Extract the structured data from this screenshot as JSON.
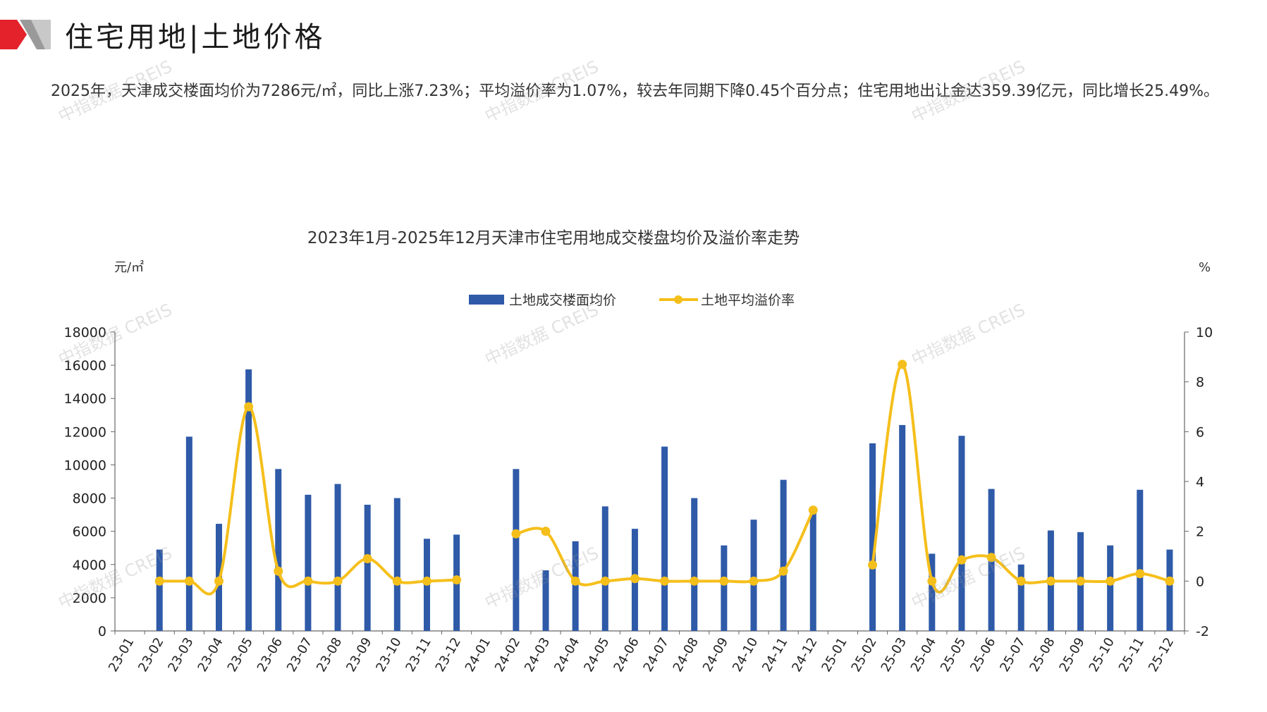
{
  "header": {
    "title": "住宅用地|土地价格",
    "summary": "2025年，天津成交楼面均价为7286元/㎡，同比上涨7.23%；平均溢价率为1.07%，较去年同期下降0.45个百分点；住宅用地出让金达359.39亿元，同比增长25.49%。",
    "watermark": "中指数据 CREIS"
  },
  "colors": {
    "bar": "#2E5AA8",
    "line": "#F5BF1B",
    "logo_red": "#E3222B",
    "logo_gray": "#9A9A9A"
  },
  "chart_data": {
    "type": "bar",
    "title": "2023年1月-2025年12月天津市住宅用地成交楼盘均价及溢价率走势",
    "y_left_unit": "元/㎡",
    "y_right_unit": "%",
    "ylim_left": [
      0,
      18000
    ],
    "yticks_left": [
      0,
      2000,
      4000,
      6000,
      8000,
      10000,
      12000,
      14000,
      16000,
      18000
    ],
    "ylim_right": [
      -2,
      10
    ],
    "yticks_right": [
      -2,
      0,
      2,
      4,
      6,
      8,
      10
    ],
    "legend_position": "top-center",
    "categories": [
      "23-01",
      "23-02",
      "23-03",
      "23-04",
      "23-05",
      "23-06",
      "23-07",
      "23-08",
      "23-09",
      "23-10",
      "23-11",
      "23-12",
      "24-01",
      "24-02",
      "24-03",
      "24-04",
      "24-05",
      "24-06",
      "24-07",
      "24-08",
      "24-09",
      "24-10",
      "24-11",
      "24-12",
      "25-01",
      "25-02",
      "25-03",
      "25-04",
      "25-05",
      "25-06",
      "25-07",
      "25-08",
      "25-09",
      "25-10",
      "25-11",
      "25-12"
    ],
    "series": [
      {
        "name": "土地成交楼面均价",
        "type": "bar",
        "axis": "left",
        "values": [
          null,
          4900,
          11700,
          6450,
          15750,
          9750,
          8200,
          8850,
          7600,
          8000,
          5550,
          5800,
          null,
          9750,
          3650,
          5400,
          7500,
          6150,
          11100,
          8000,
          5150,
          6700,
          9100,
          7200,
          null,
          11300,
          12400,
          4650,
          11750,
          8550,
          4000,
          6050,
          5950,
          5150,
          8500,
          4900
        ]
      },
      {
        "name": "土地平均溢价率",
        "type": "line",
        "axis": "right",
        "values": [
          null,
          0,
          0,
          0,
          7.0,
          0.4,
          0,
          0,
          0.9,
          0,
          0,
          0.05,
          null,
          1.9,
          2.0,
          0,
          0,
          0.1,
          0,
          0,
          0,
          0,
          0.4,
          2.85,
          null,
          0.65,
          8.7,
          0,
          0.85,
          0.95,
          0,
          0,
          0,
          0,
          0.3,
          0
        ]
      }
    ]
  }
}
